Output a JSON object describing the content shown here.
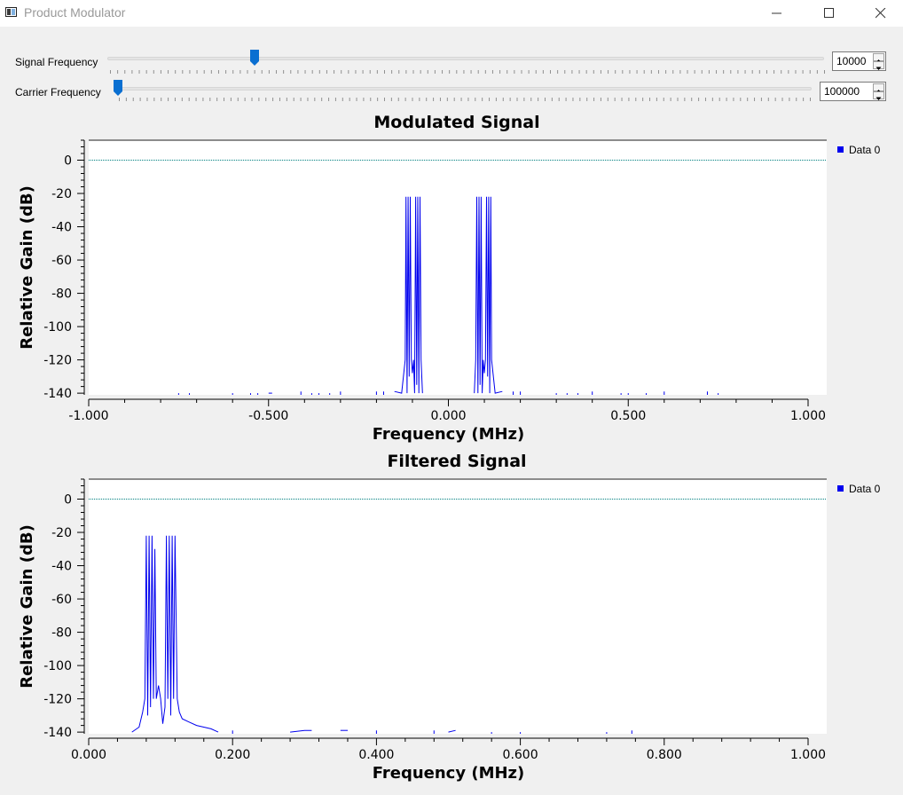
{
  "window": {
    "title": "Product Modulator",
    "icon": "app-window-icon",
    "controls": [
      "minimize-icon",
      "maximize-icon",
      "close-icon"
    ]
  },
  "controls": {
    "signal_frequency": {
      "label": "Signal Frequency",
      "value": "10000",
      "slider_fraction": 0.2
    },
    "carrier_frequency": {
      "label": "Carrier Frequency",
      "value": "100000",
      "slider_fraction": 0.0
    }
  },
  "colors": {
    "trace": "#0000ee",
    "zero_line": "#008080",
    "background": "#f0f0f0",
    "plot_bg": "#ffffff",
    "handle": "#0a6fd1"
  },
  "chart_data": [
    {
      "type": "line",
      "title": "Modulated Signal",
      "xlabel": "Frequency (MHz)",
      "ylabel": "Relative Gain (dB)",
      "xlim": [
        -1.0,
        1.0
      ],
      "ylim": [
        -141,
        12
      ],
      "xticks": [
        -1.0,
        -0.5,
        0.0,
        0.5,
        1.0
      ],
      "xtick_labels": [
        "-1.000",
        "-0.500",
        "0.000",
        "0.500",
        "1.000"
      ],
      "yticks": [
        0,
        -20,
        -40,
        -60,
        -80,
        -100,
        -120,
        -140
      ],
      "ytick_labels": [
        "0",
        "-20",
        "-40",
        "-60",
        "-80",
        "-100",
        "-120",
        "-140"
      ],
      "legend": {
        "entries": [
          "Data 0"
        ],
        "placement": "right"
      },
      "reference_line_y": 0,
      "series": [
        {
          "name": "Data 0",
          "points": [
            [
              -0.75,
              -140
            ],
            [
              -0.72,
              -140
            ],
            [
              -0.6,
              -140
            ],
            [
              -0.55,
              -140
            ],
            [
              -0.53,
              -140
            ],
            [
              -0.5,
              -140
            ],
            [
              -0.49,
              -140
            ],
            [
              -0.41,
              -139
            ],
            [
              -0.38,
              -140
            ],
            [
              -0.36,
              -140
            ],
            [
              -0.33,
              -140
            ],
            [
              -0.3,
              -139
            ],
            [
              -0.2,
              -139
            ],
            [
              -0.18,
              -139
            ],
            [
              -0.15,
              -139
            ],
            [
              -0.13,
              -140
            ],
            [
              -0.12,
              -120
            ],
            [
              -0.118,
              -22
            ],
            [
              -0.115,
              -140
            ],
            [
              -0.112,
              -22
            ],
            [
              -0.109,
              -130
            ],
            [
              -0.106,
              -22
            ],
            [
              -0.103,
              -120
            ],
            [
              -0.1,
              -128
            ],
            [
              -0.097,
              -120
            ],
            [
              -0.094,
              -140
            ],
            [
              -0.091,
              -22
            ],
            [
              -0.088,
              -135
            ],
            [
              -0.085,
              -22
            ],
            [
              -0.082,
              -140
            ],
            [
              -0.079,
              -22
            ],
            [
              -0.076,
              -120
            ],
            [
              -0.072,
              -140
            ],
            [
              0.072,
              -140
            ],
            [
              0.076,
              -120
            ],
            [
              0.079,
              -22
            ],
            [
              0.082,
              -140
            ],
            [
              0.085,
              -22
            ],
            [
              0.088,
              -135
            ],
            [
              0.091,
              -22
            ],
            [
              0.094,
              -140
            ],
            [
              0.097,
              -120
            ],
            [
              0.1,
              -128
            ],
            [
              0.103,
              -120
            ],
            [
              0.106,
              -22
            ],
            [
              0.109,
              -130
            ],
            [
              0.112,
              -22
            ],
            [
              0.115,
              -140
            ],
            [
              0.118,
              -22
            ],
            [
              0.12,
              -120
            ],
            [
              0.13,
              -140
            ],
            [
              0.15,
              -139
            ],
            [
              0.18,
              -139
            ],
            [
              0.2,
              -139
            ],
            [
              0.3,
              -140
            ],
            [
              0.33,
              -140
            ],
            [
              0.36,
              -140
            ],
            [
              0.4,
              -139
            ],
            [
              0.48,
              -140
            ],
            [
              0.5,
              -140
            ],
            [
              0.55,
              -140
            ],
            [
              0.6,
              -139
            ],
            [
              0.72,
              -139
            ],
            [
              0.75,
              -140
            ]
          ]
        }
      ]
    },
    {
      "type": "line",
      "title": "Filtered Signal",
      "xlabel": "Frequency (MHz)",
      "ylabel": "Relative Gain (dB)",
      "xlim": [
        0.0,
        1.0
      ],
      "ylim": [
        -141,
        12
      ],
      "xticks": [
        0.0,
        0.2,
        0.4,
        0.6,
        0.8,
        1.0
      ],
      "xtick_labels": [
        "0.000",
        "0.200",
        "0.400",
        "0.600",
        "0.800",
        "1.000"
      ],
      "yticks": [
        0,
        -20,
        -40,
        -60,
        -80,
        -100,
        -120,
        -140
      ],
      "ytick_labels": [
        "0",
        "-20",
        "-40",
        "-60",
        "-80",
        "-100",
        "-120",
        "-140"
      ],
      "legend": {
        "entries": [
          "Data 0"
        ],
        "placement": "right"
      },
      "reference_line_y": 0,
      "series": [
        {
          "name": "Data 0",
          "points": [
            [
              0.06,
              -140
            ],
            [
              0.07,
              -137
            ],
            [
              0.075,
              -128
            ],
            [
              0.078,
              -120
            ],
            [
              0.08,
              -22
            ],
            [
              0.082,
              -130
            ],
            [
              0.084,
              -22
            ],
            [
              0.086,
              -125
            ],
            [
              0.088,
              -22
            ],
            [
              0.09,
              -120
            ],
            [
              0.092,
              -30
            ],
            [
              0.094,
              -120
            ],
            [
              0.097,
              -112
            ],
            [
              0.1,
              -120
            ],
            [
              0.103,
              -135
            ],
            [
              0.106,
              -125
            ],
            [
              0.108,
              -22
            ],
            [
              0.11,
              -120
            ],
            [
              0.112,
              -22
            ],
            [
              0.114,
              -130
            ],
            [
              0.116,
              -22
            ],
            [
              0.118,
              -120
            ],
            [
              0.12,
              -22
            ],
            [
              0.123,
              -120
            ],
            [
              0.126,
              -128
            ],
            [
              0.13,
              -132
            ],
            [
              0.14,
              -134
            ],
            [
              0.15,
              -136
            ],
            [
              0.16,
              -137
            ],
            [
              0.17,
              -138
            ],
            [
              0.18,
              -140
            ],
            [
              0.2,
              -139
            ],
            [
              0.28,
              -140
            ],
            [
              0.3,
              -139
            ],
            [
              0.31,
              -139
            ],
            [
              0.35,
              -139
            ],
            [
              0.36,
              -139
            ],
            [
              0.4,
              -139
            ],
            [
              0.48,
              -139
            ],
            [
              0.5,
              -140
            ],
            [
              0.51,
              -139
            ],
            [
              0.56,
              -140
            ],
            [
              0.6,
              -140
            ],
            [
              0.72,
              -140
            ],
            [
              0.755,
              -139
            ]
          ]
        }
      ]
    }
  ]
}
